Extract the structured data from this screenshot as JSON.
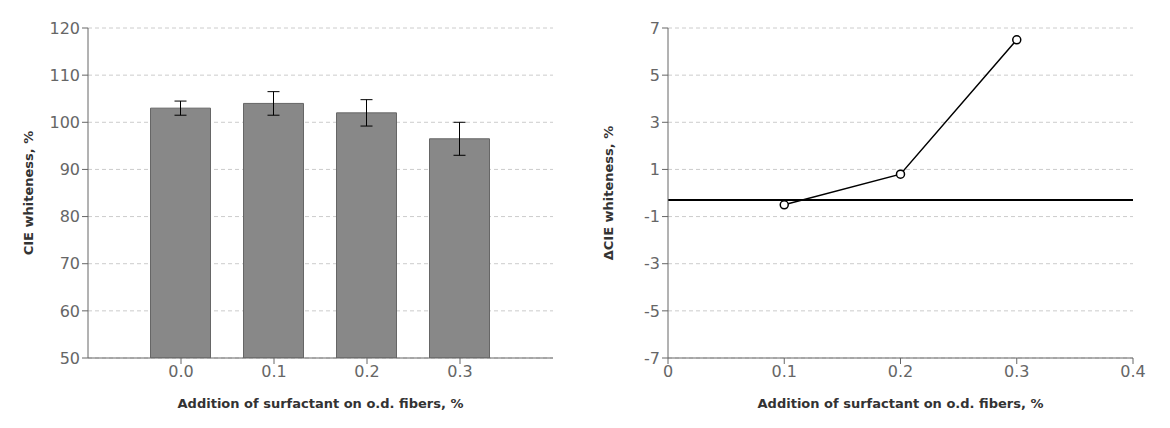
{
  "chart_data": [
    {
      "type": "bar",
      "x": [
        0.0,
        0.1,
        0.2,
        0.3
      ],
      "values": [
        103.0,
        104.0,
        102.0,
        96.5
      ],
      "errors": [
        1.5,
        2.5,
        2.8,
        3.5
      ],
      "color": "#888888",
      "xlabel": "Addition of surfactant on o.d. fibers, %",
      "ylabel": "CIE whiteness, %",
      "xlim": [
        -0.1,
        0.4
      ],
      "xticks": [
        {
          "value": 0.0,
          "label": "0.0"
        },
        0.1,
        0.2,
        0.3
      ],
      "ylim": [
        50,
        120
      ],
      "yticks": [
        50,
        60,
        70,
        80,
        90,
        100,
        110,
        120
      ],
      "grid": true
    },
    {
      "type": "line",
      "x": [
        0.1,
        0.2,
        0.3
      ],
      "values": [
        -0.5,
        0.8,
        6.5
      ],
      "color": "#000000",
      "marker": "circle",
      "reference_line": -0.3,
      "xlabel": "Addition of surfactant on o.d. fibers, %",
      "ylabel": "ΔCIE whiteness, %",
      "xlim": [
        0.0,
        0.4
      ],
      "xticks": [
        0,
        0.1,
        0.2,
        0.3,
        0.4
      ],
      "ylim": [
        -7,
        7
      ],
      "yticks": [
        -7,
        -5,
        -3,
        -1,
        1,
        3,
        5,
        7
      ],
      "grid": true
    }
  ]
}
